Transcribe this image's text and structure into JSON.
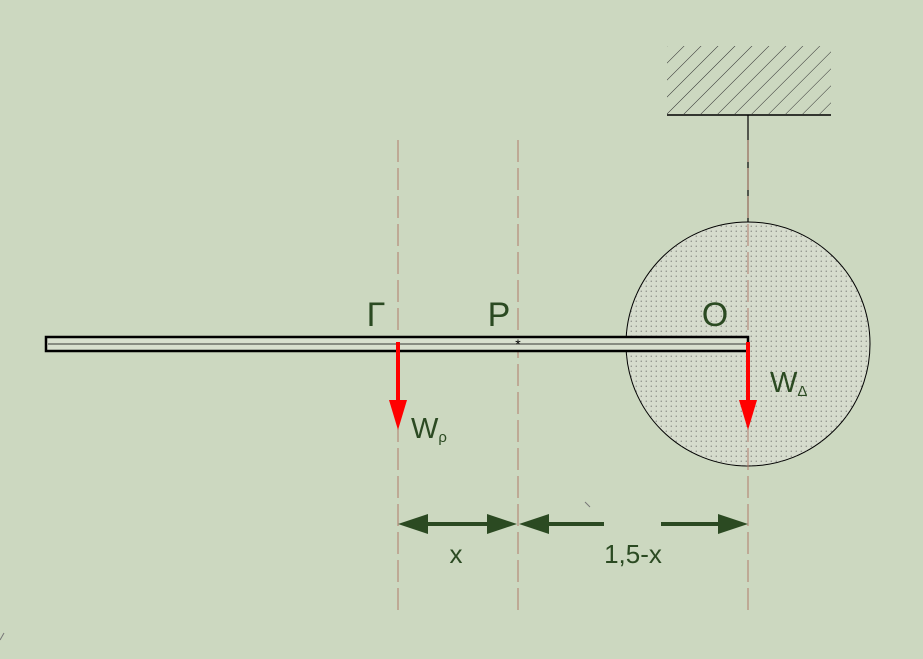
{
  "diagram": {
    "labels": {
      "point_gamma": "Γ",
      "point_p": "P",
      "point_o": "O",
      "weight_rod": {
        "main": "W",
        "sub": "ρ"
      },
      "weight_disk": {
        "main": "W",
        "sub": "Δ"
      },
      "dim_x": "x",
      "dim_rest": "1,5-x"
    },
    "colors": {
      "background": "#ccd8c0",
      "force_arrow": "#ff0000",
      "dimension_arrow": "#2b4a22",
      "text": "#2b4a22",
      "guide_line": "#b07a6a",
      "outline": "#000000"
    }
  }
}
